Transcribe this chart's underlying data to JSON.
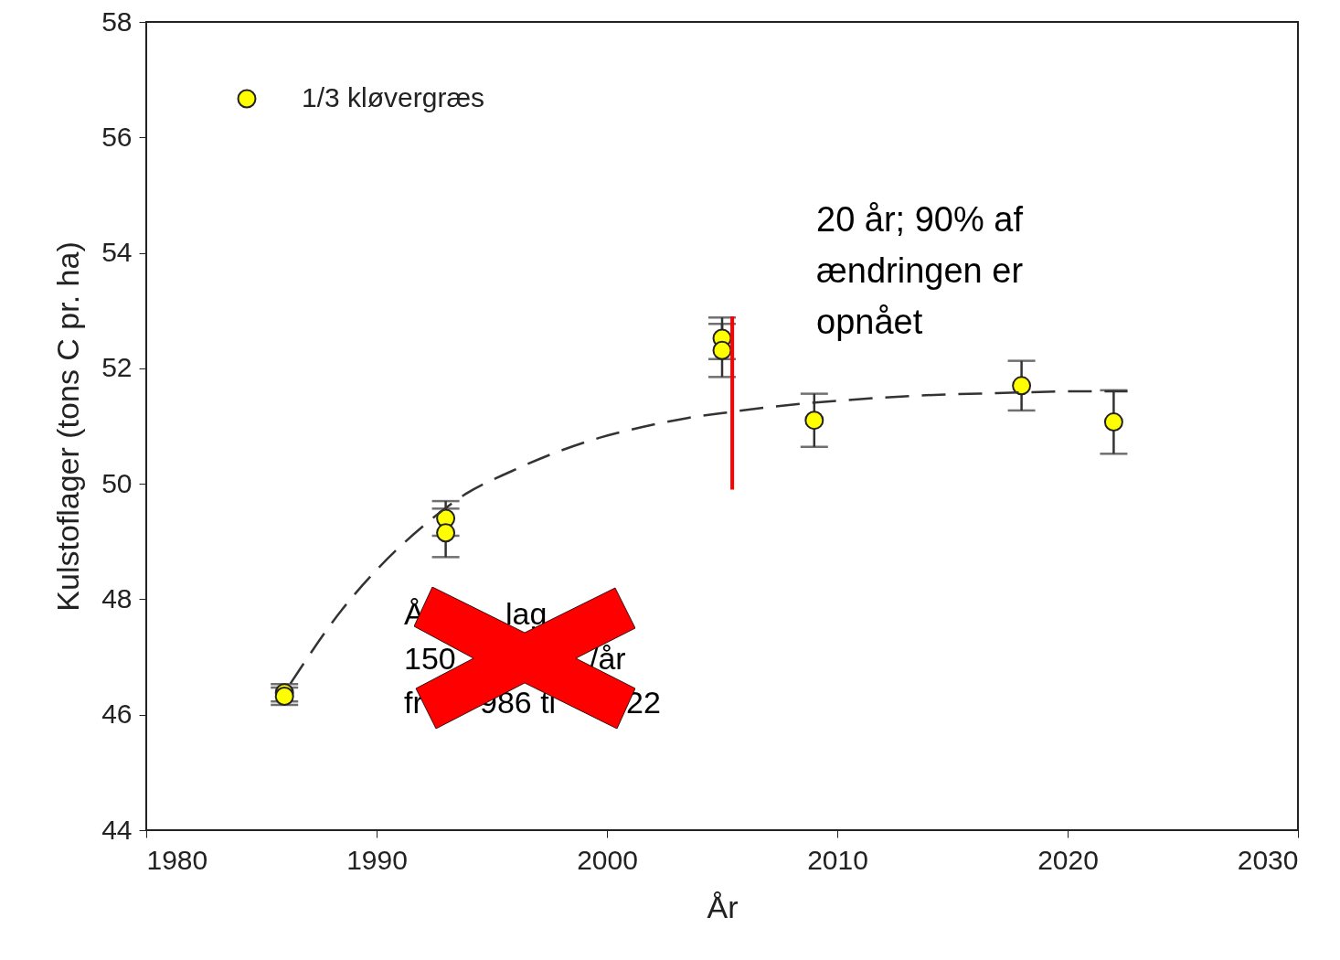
{
  "chart_data": {
    "type": "scatter",
    "xlabel": "År",
    "ylabel": "Kulstoflager (tons C pr. ha)",
    "xlim": [
      1980,
      2030
    ],
    "xticks": [
      1980,
      1990,
      2000,
      2010,
      2020,
      2030
    ],
    "ylim": [
      44,
      58
    ],
    "yticks": [
      44,
      46,
      48,
      50,
      52,
      54,
      56,
      58
    ],
    "grid": false,
    "legend": "top left",
    "annotations": [
      "20 år; 90% af\nændringen er\nopnået",
      "Å",
      "lag",
      "150",
      "/år",
      "fr",
      "986 ti",
      "22"
    ],
    "series": [
      {
        "name": "1/3 kløvergræs",
        "color": "#ffff00",
        "marker": "circle",
        "x": [
          1986,
          1986,
          1993,
          1993,
          2005,
          2005,
          2009,
          2018,
          2022
        ],
        "values": [
          46.38,
          46.32,
          49.4,
          49.15,
          52.52,
          52.31,
          51.1,
          51.7,
          51.07
        ],
        "errors": [
          0.15,
          0.15,
          0.3,
          0.42,
          0.36,
          0.46,
          0.46,
          0.43,
          0.55
        ]
      },
      {
        "type": "line",
        "color": "#333333",
        "line_style": "dashed",
        "marker": "none",
        "x": [
          1986.26,
          1988.5,
          1990.1,
          1992.06,
          1993.89,
          1995.87,
          1997.7,
          1999.7,
          2001.5,
          2003.5,
          2005.5,
          2007.1,
          2010.4,
          2014.2,
          2016.9,
          2020.2,
          2022.6
        ],
        "values": [
          46.54,
          47.82,
          48.55,
          49.28,
          49.83,
          50.22,
          50.53,
          50.8,
          50.98,
          51.14,
          51.25,
          51.33,
          51.45,
          51.54,
          51.57,
          51.6,
          51.6
        ]
      },
      {
        "type": "line",
        "color": "#ff0000",
        "line_style": "solid",
        "marker": "none",
        "x": [
          2005.44,
          2005.44
        ],
        "values": [
          49.9,
          52.9
        ]
      }
    ]
  }
}
